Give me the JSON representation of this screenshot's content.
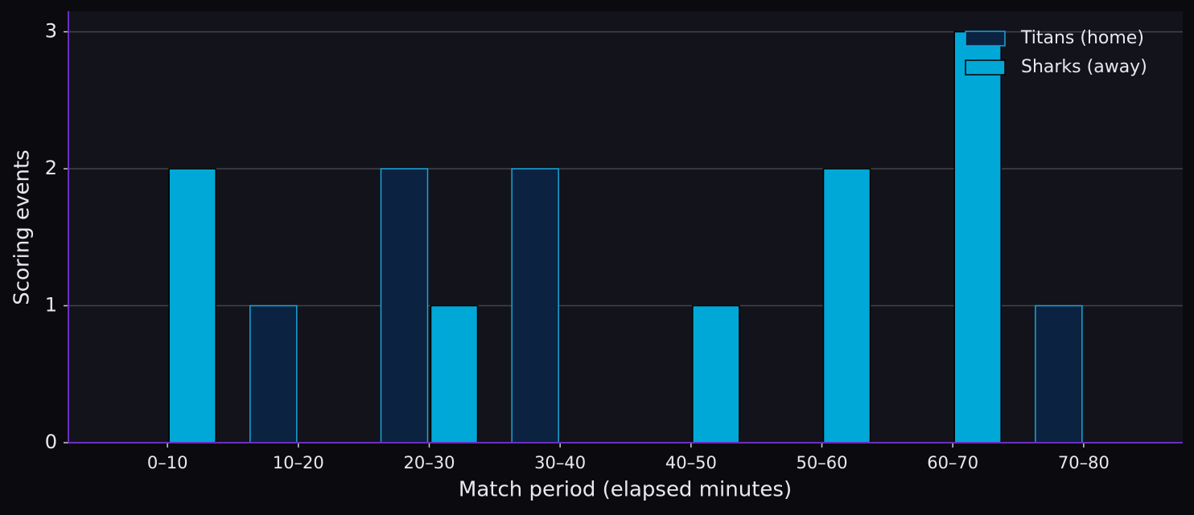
{
  "chart_data": {
    "type": "bar",
    "x_label": "Match period (elapsed minutes)",
    "y_label": "Scoring events",
    "categories": [
      "0–10",
      "10–20",
      "20–30",
      "30–40",
      "40–50",
      "50–60",
      "60–70",
      "70–80"
    ],
    "series": [
      {
        "name": "Titans (home)",
        "color": "#0b2341",
        "edgecolor": "#1aa3d9",
        "values": [
          0,
          1,
          2,
          2,
          0,
          0,
          0,
          1
        ]
      },
      {
        "name": "Sharks (away)",
        "color": "#00a8d8",
        "edgecolor": "#000000",
        "values": [
          2,
          0,
          1,
          0,
          1,
          2,
          3,
          0
        ]
      }
    ],
    "ylim": [
      0,
      3.15
    ],
    "yticks": [
      0,
      1,
      2,
      3
    ],
    "grid": true,
    "legend": "upper right"
  }
}
